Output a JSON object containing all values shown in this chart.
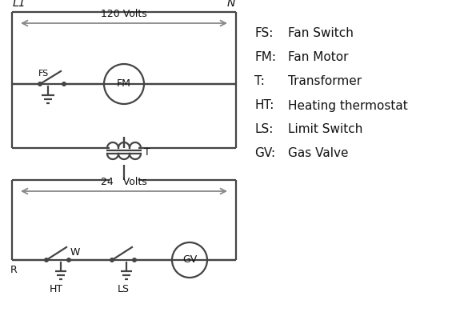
{
  "background_color": "#ffffff",
  "line_color": "#444444",
  "text_color": "#111111",
  "legend": [
    [
      "FS:",
      "Fan Switch"
    ],
    [
      "FM:",
      "Fan Motor"
    ],
    [
      "T:",
      "Transformer"
    ],
    [
      "HT:",
      "Heating thermostat"
    ],
    [
      "LS:",
      "Limit Switch"
    ],
    [
      "GV:",
      "Gas Valve"
    ]
  ],
  "L1_label": "L1",
  "N_label": "N",
  "volts120_label": "120 Volts",
  "volts24_label": "24   Volts",
  "T_label": "T",
  "FS_label": "FS",
  "FM_label": "FM",
  "R_label": "R",
  "W_label": "W",
  "HT_label": "HT",
  "LS_label": "LS",
  "GV_label": "GV"
}
